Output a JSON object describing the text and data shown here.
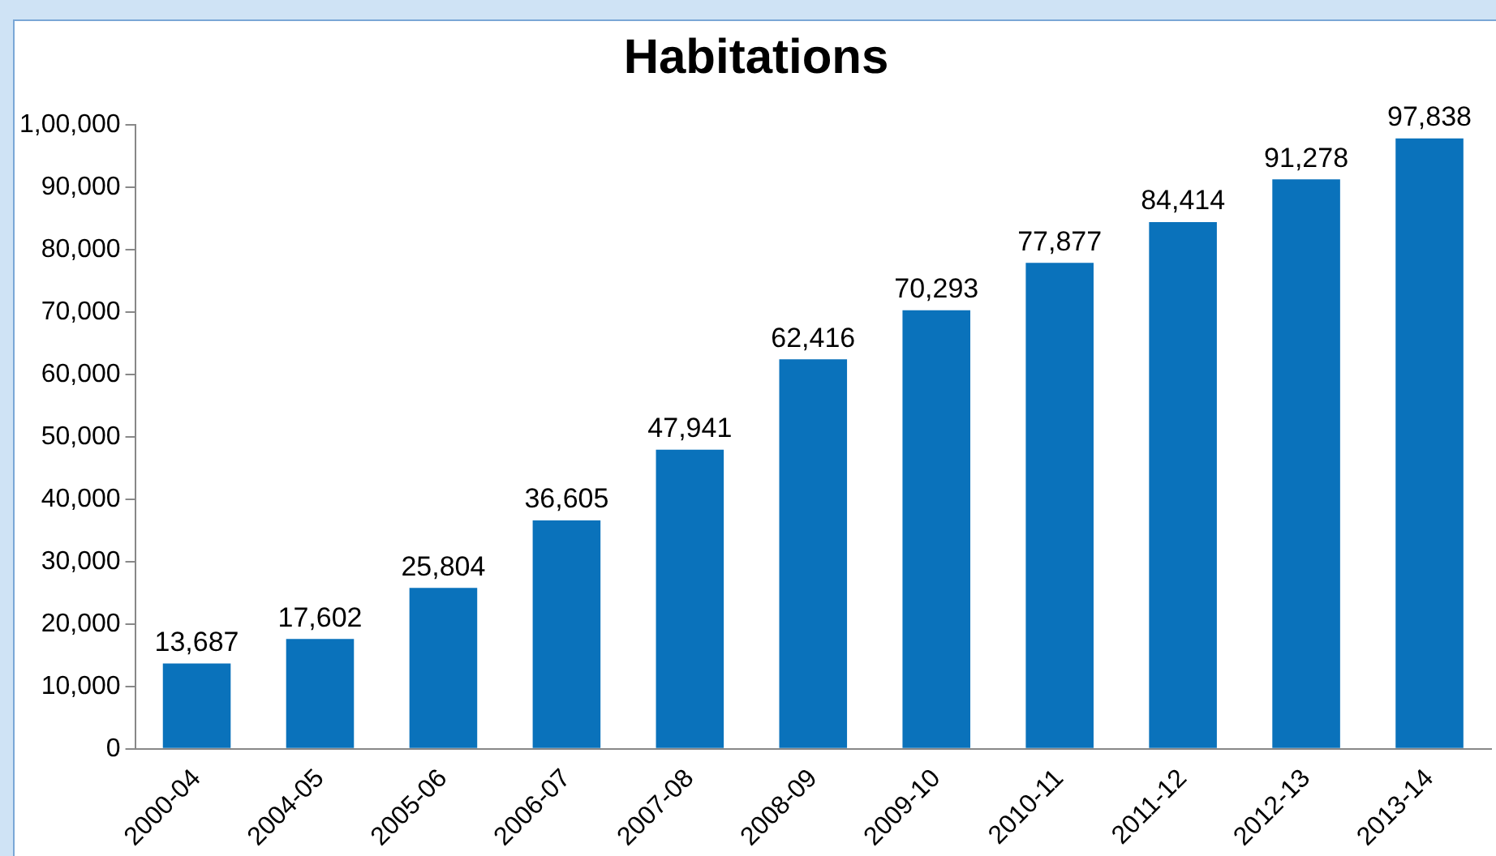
{
  "chart_data": {
    "type": "bar",
    "title": "Habitations",
    "categories": [
      "2000-04",
      "2004-05",
      "2005-06",
      "2006-07",
      "2007-08",
      "2008-09",
      "2009-10",
      "2010-11",
      "2011-12",
      "2012-13",
      "2013-14"
    ],
    "values": [
      13687,
      17602,
      25804,
      36605,
      47941,
      62416,
      70293,
      77877,
      84414,
      91278,
      97838
    ],
    "value_labels": [
      "13,687",
      "17,602",
      "25,804",
      "36,605",
      "47,941",
      "62,416",
      "70,293",
      "77,877",
      "84,414",
      "91,278",
      "97,838"
    ],
    "color": "#0a72bb",
    "ylim": [
      0,
      100000
    ],
    "yticks": [
      0,
      {
        "value": 10000,
        "label": "10,000"
      },
      {
        "value": 20000,
        "label": "20,000"
      },
      {
        "value": 30000,
        "label": "30,000"
      },
      {
        "value": 40000,
        "label": "40,000"
      },
      {
        "value": 50000,
        "label": "50,000"
      },
      {
        "value": 60000,
        "label": "60,000"
      },
      {
        "value": 70000,
        "label": "70,000"
      },
      {
        "value": 80000,
        "label": "80,000"
      },
      {
        "value": 90000,
        "label": "90,000"
      },
      {
        "value": 100000,
        "label": "1,00,000"
      }
    ],
    "grid": false,
    "legend": false
  }
}
